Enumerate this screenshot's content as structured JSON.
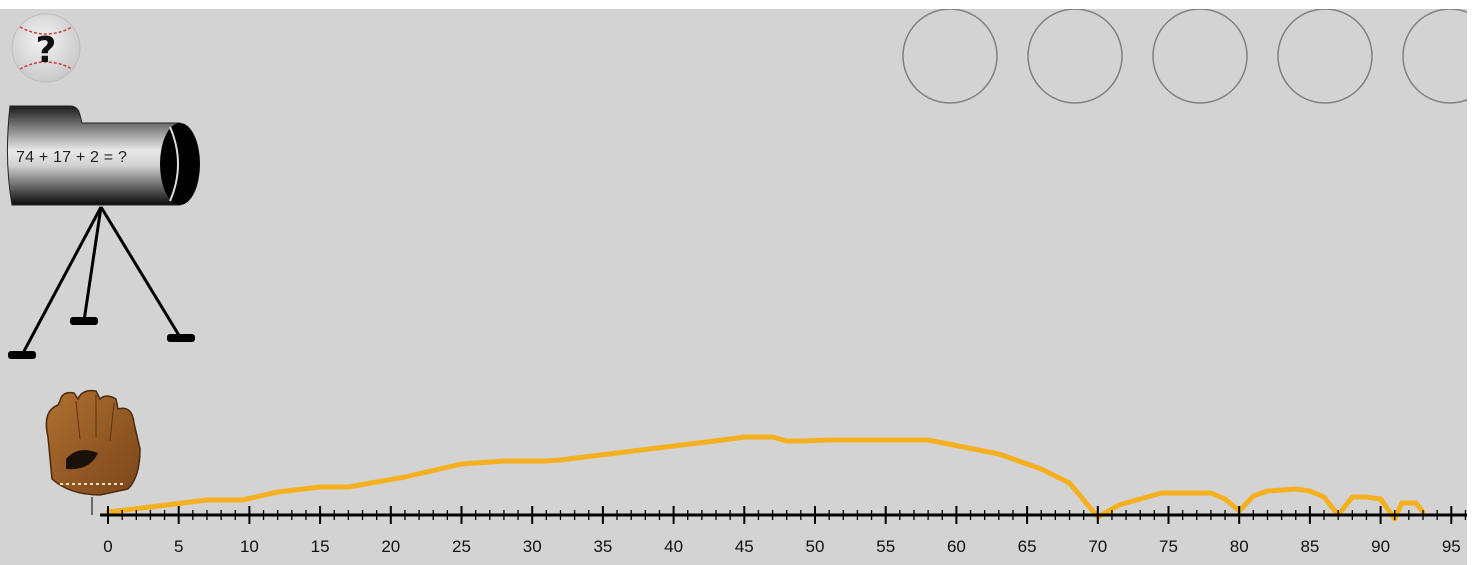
{
  "help_button": {
    "symbol": "?",
    "icon": "baseball-help-icon"
  },
  "cannon": {
    "equation": "74 + 17 + 2 = ?"
  },
  "glove": {
    "icon": "baseball-glove-icon"
  },
  "answer_slots": {
    "count": 5
  },
  "number_line": {
    "min": 0,
    "max": 95,
    "major_step": 5,
    "minor_step": 1,
    "labels": [
      "0",
      "5",
      "10",
      "15",
      "20",
      "25",
      "30",
      "35",
      "40",
      "45",
      "50",
      "55",
      "60",
      "65",
      "70",
      "75",
      "80",
      "85",
      "90",
      "95"
    ]
  },
  "trajectory": {
    "color": "#f5b01f",
    "bounce_points": [
      0,
      70,
      80,
      87,
      91,
      93
    ]
  },
  "colors": {
    "background": "#d3d3d3",
    "trajectory": "#f5b01f",
    "slot_outline": "#808080"
  }
}
